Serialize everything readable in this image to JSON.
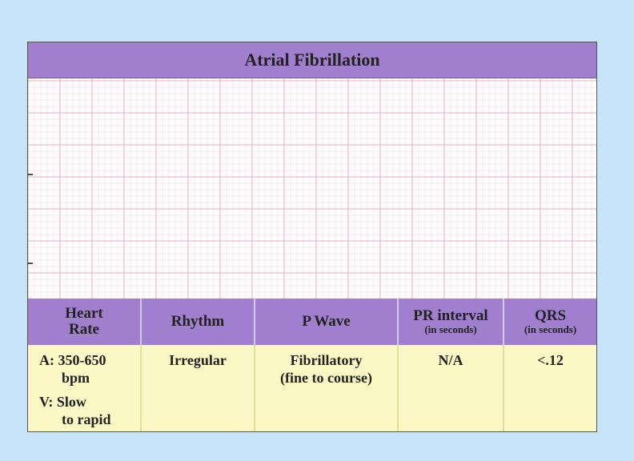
{
  "title": "Atrial Fibrillation",
  "table": {
    "headers": [
      {
        "lines": [
          "Heart",
          "Rate"
        ]
      },
      {
        "lines": [
          "Rhythm"
        ]
      },
      {
        "lines": [
          "P Wave"
        ]
      },
      {
        "lines": [
          "PR interval"
        ],
        "note": "(in seconds)"
      },
      {
        "lines": [
          "QRS"
        ],
        "note": "(in seconds)"
      }
    ],
    "rows": [
      [
        {
          "blocks": [
            [
              "A: 350-650",
              "bpm"
            ],
            [
              "V: Slow",
              "to rapid"
            ]
          ]
        },
        {
          "blocks": [
            [
              "Irregular"
            ]
          ]
        },
        {
          "blocks": [
            [
              "Fibrillatory",
              "(fine to course)"
            ]
          ]
        },
        {
          "blocks": [
            [
              "N/A"
            ]
          ]
        },
        {
          "blocks": [
            [
              "<.12"
            ]
          ]
        }
      ]
    ]
  }
}
